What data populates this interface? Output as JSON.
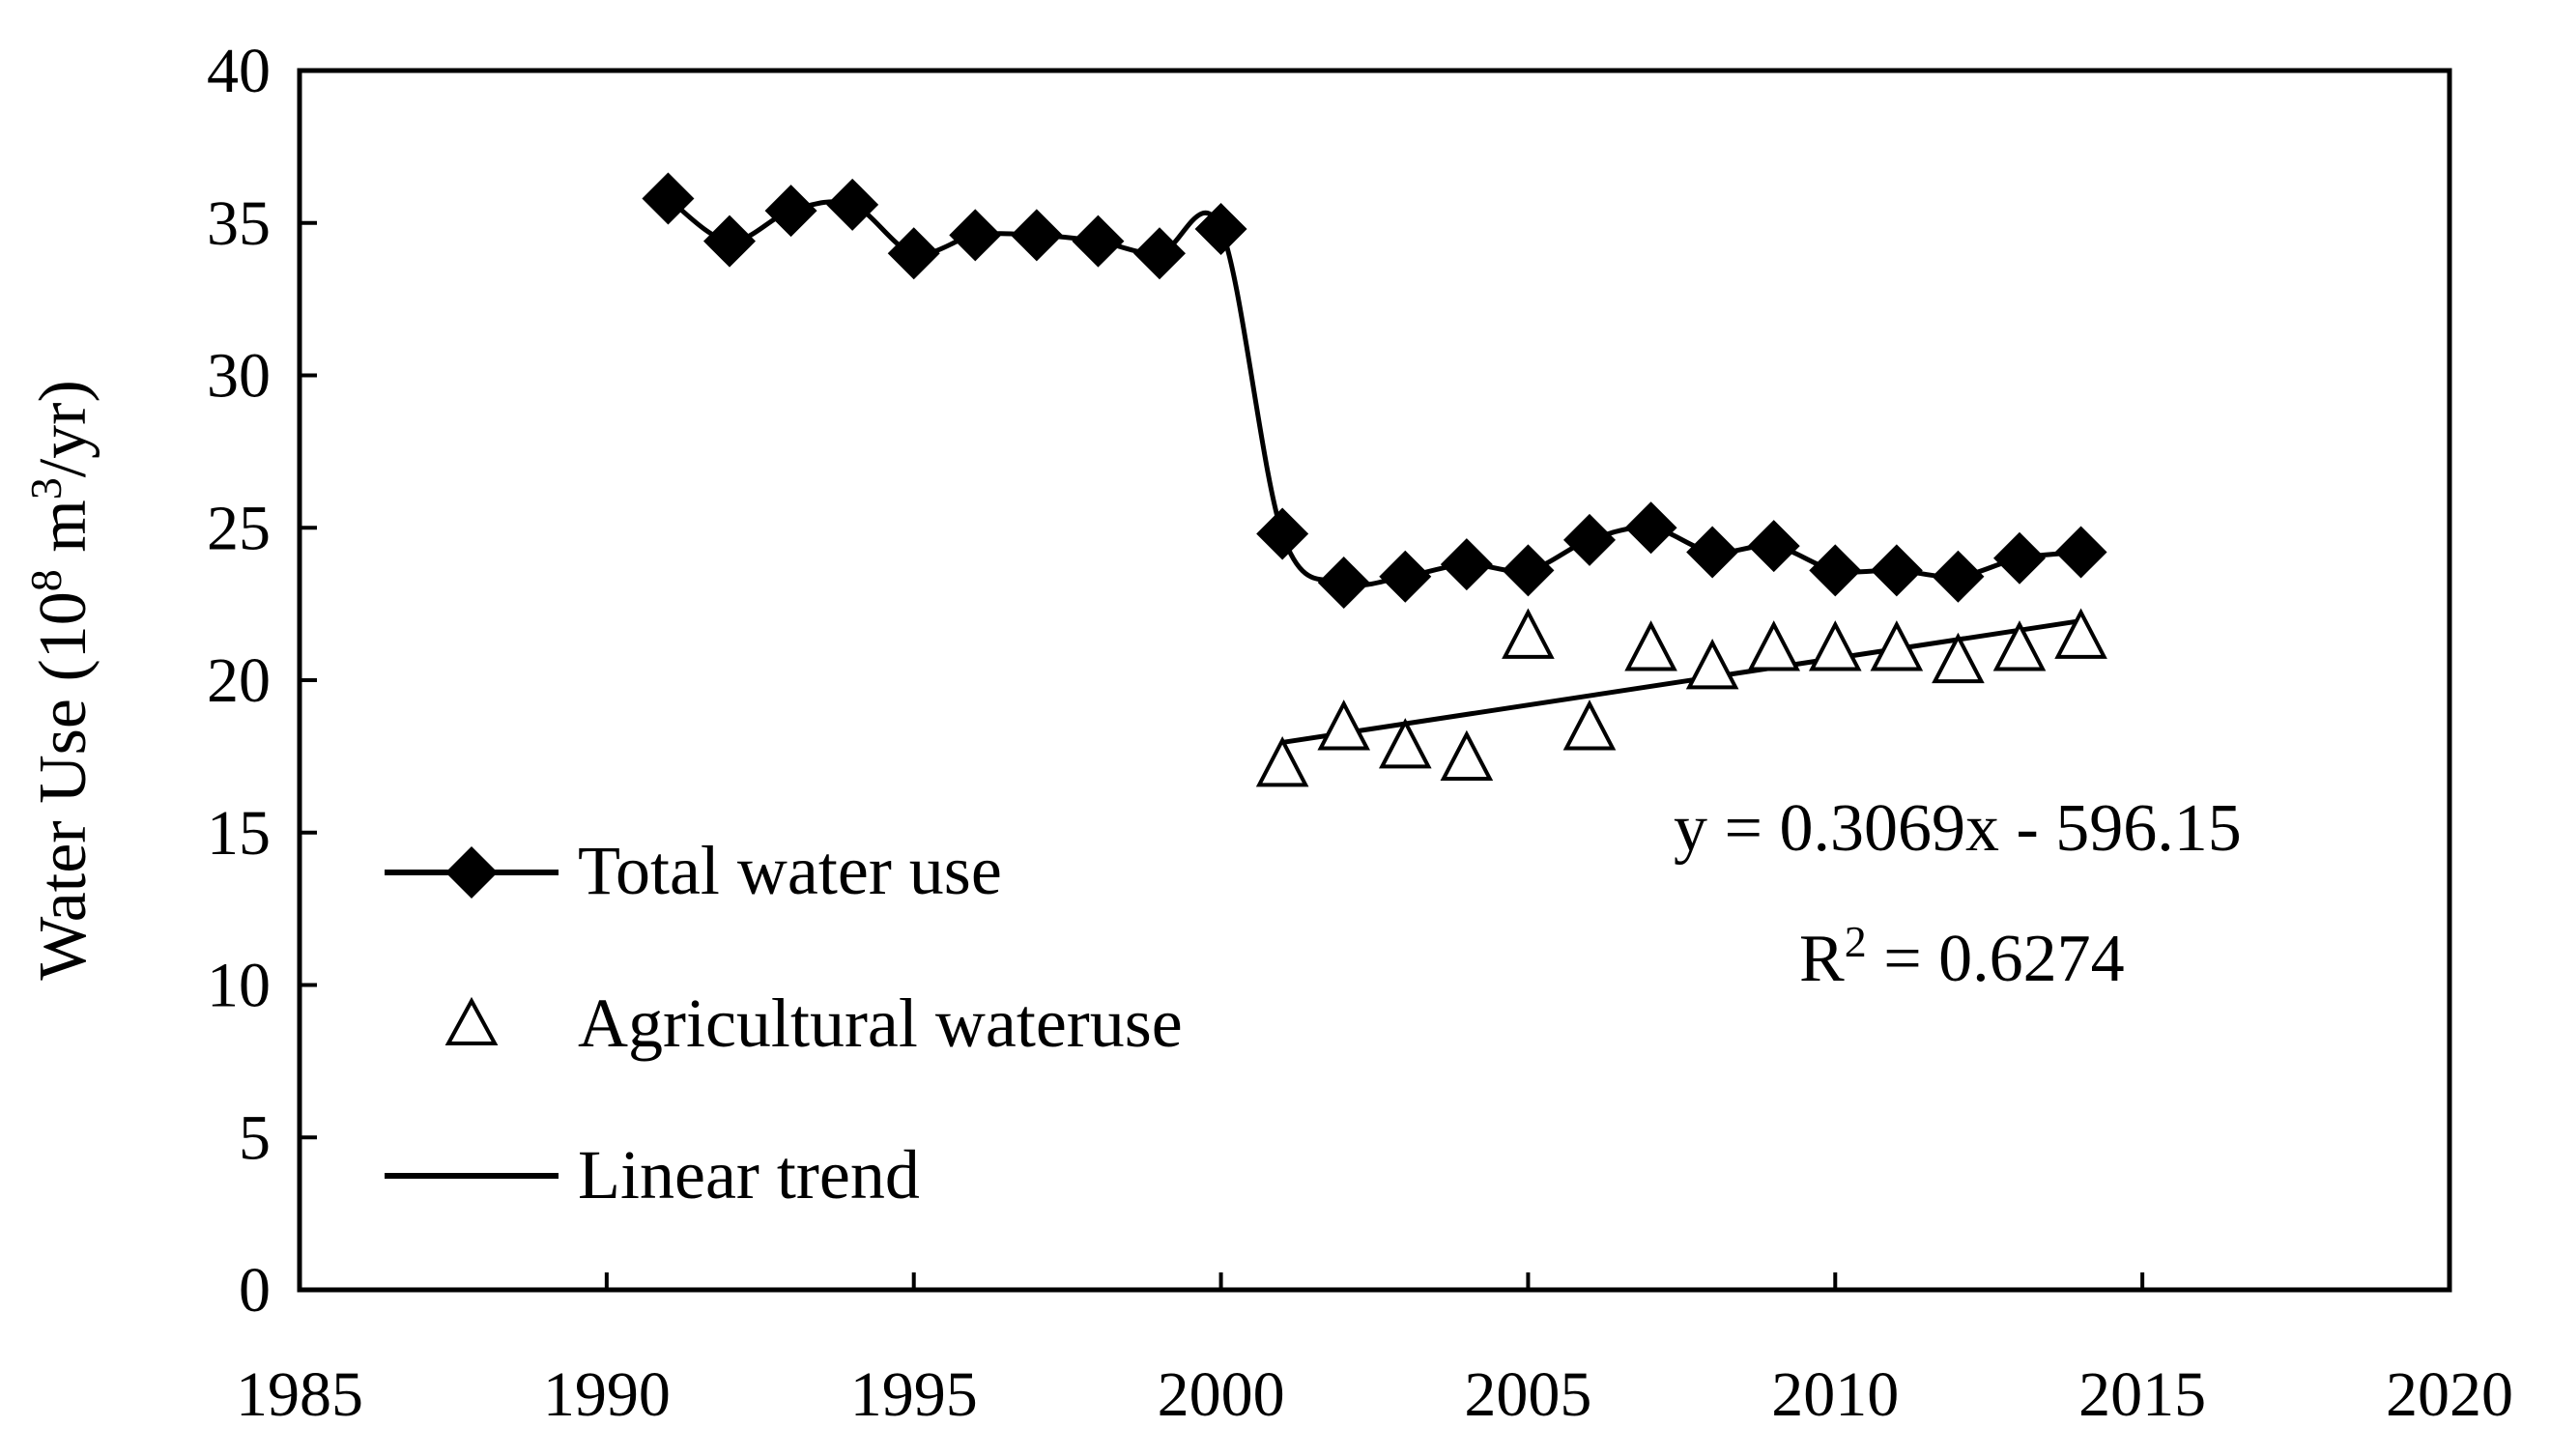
{
  "chart_data": {
    "type": "line",
    "title": "",
    "xlabel": "",
    "ylabel": "Water Use (10",
    "ylabel_sup": "8",
    "ylabel_mid": " m",
    "ylabel_sup2": "3",
    "ylabel_end": "/yr)",
    "xlim": [
      1985,
      2020
    ],
    "ylim": [
      0,
      40
    ],
    "x_ticks": [
      1985,
      1990,
      1995,
      2000,
      2005,
      2010,
      2015,
      2020
    ],
    "y_ticks": [
      0,
      5,
      10,
      15,
      20,
      25,
      30,
      35,
      40
    ],
    "grid": false,
    "legend_position": "bottom-left",
    "series": [
      {
        "name": "Total water use",
        "marker": "diamond",
        "line": "smooth",
        "x": [
          1991,
          1992,
          1993,
          1994,
          1995,
          1996,
          1997,
          1998,
          1999,
          2000,
          2001,
          2002,
          2003,
          2004,
          2005,
          2006,
          2007,
          2008,
          2009,
          2010,
          2011,
          2012,
          2013,
          2014
        ],
        "values": [
          35.8,
          34.4,
          35.4,
          35.6,
          34.0,
          34.6,
          34.6,
          34.4,
          34.0,
          34.8,
          24.8,
          23.2,
          23.4,
          23.8,
          23.6,
          24.6,
          25.0,
          24.2,
          24.4,
          23.6,
          23.6,
          23.4,
          24.0,
          24.2
        ]
      },
      {
        "name": "Agricultural wateruse",
        "marker": "triangle",
        "line": "none",
        "x": [
          2001,
          2002,
          2003,
          2004,
          2005,
          2006,
          2007,
          2008,
          2009,
          2010,
          2011,
          2012,
          2013,
          2014
        ],
        "values": [
          17.2,
          18.4,
          17.8,
          17.4,
          21.4,
          18.4,
          21.0,
          20.4,
          21.0,
          21.0,
          21.0,
          20.6,
          21.0,
          21.4
        ]
      },
      {
        "name": "Linear trend",
        "marker": "none",
        "line": "straight",
        "slope": 0.3069,
        "intercept": -596.15,
        "x_range": [
          2001,
          2014
        ]
      }
    ],
    "annotations": {
      "equation": "y = 0.3069x - 596.15",
      "r2_prefix": "R",
      "r2_sup": "2",
      "r2_value": " = 0.6274"
    }
  }
}
